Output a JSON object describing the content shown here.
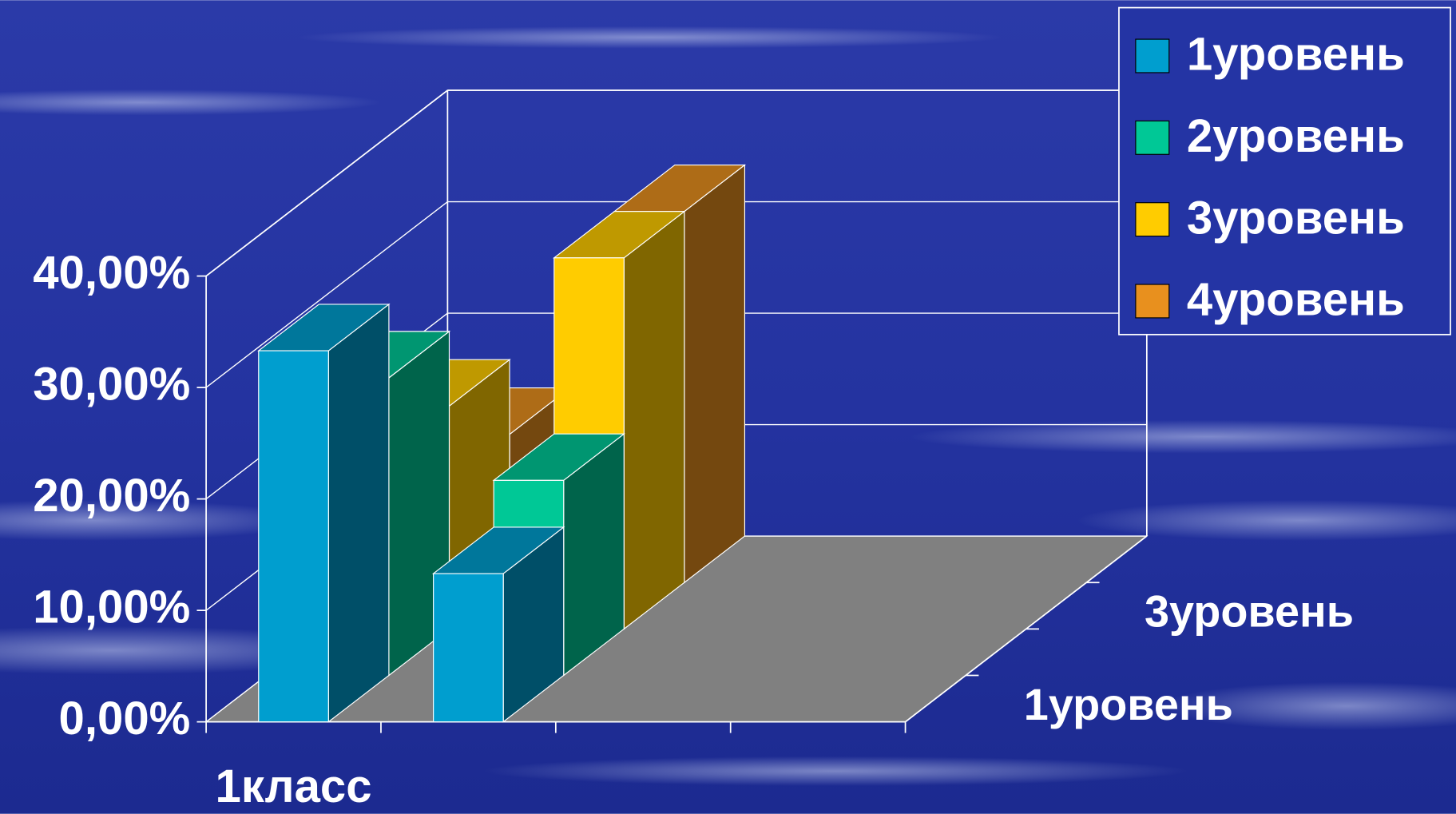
{
  "chart_data": {
    "type": "bar3d",
    "categories": [
      "1класс",
      null,
      null,
      null
    ],
    "series": [
      {
        "name": "1уровень",
        "color": "#009ecf",
        "values": [
          33.3,
          13.3,
          null,
          null
        ]
      },
      {
        "name": "2уровень",
        "color": "#00c896",
        "values": [
          26.7,
          17.5,
          null,
          null
        ]
      },
      {
        "name": "3уровень",
        "color": "#ffcc00",
        "values": [
          20,
          33.3,
          null,
          null
        ]
      },
      {
        "name": "4уровень",
        "color": "#e8901e",
        "values": [
          13.3,
          33.3,
          null,
          null
        ]
      }
    ],
    "depth_labels": [
      "1уровень",
      null,
      "3уровень",
      null
    ],
    "ylim": [
      0,
      40
    ],
    "yticks": [
      {
        "value": 0,
        "label": "0,00%"
      },
      {
        "value": 10,
        "label": "10,00%"
      },
      {
        "value": 20,
        "label": "20,00%"
      },
      {
        "value": 30,
        "label": "30,00%"
      },
      {
        "value": 40,
        "label": "40,00%"
      }
    ],
    "grid": true,
    "legend": "top-right"
  }
}
